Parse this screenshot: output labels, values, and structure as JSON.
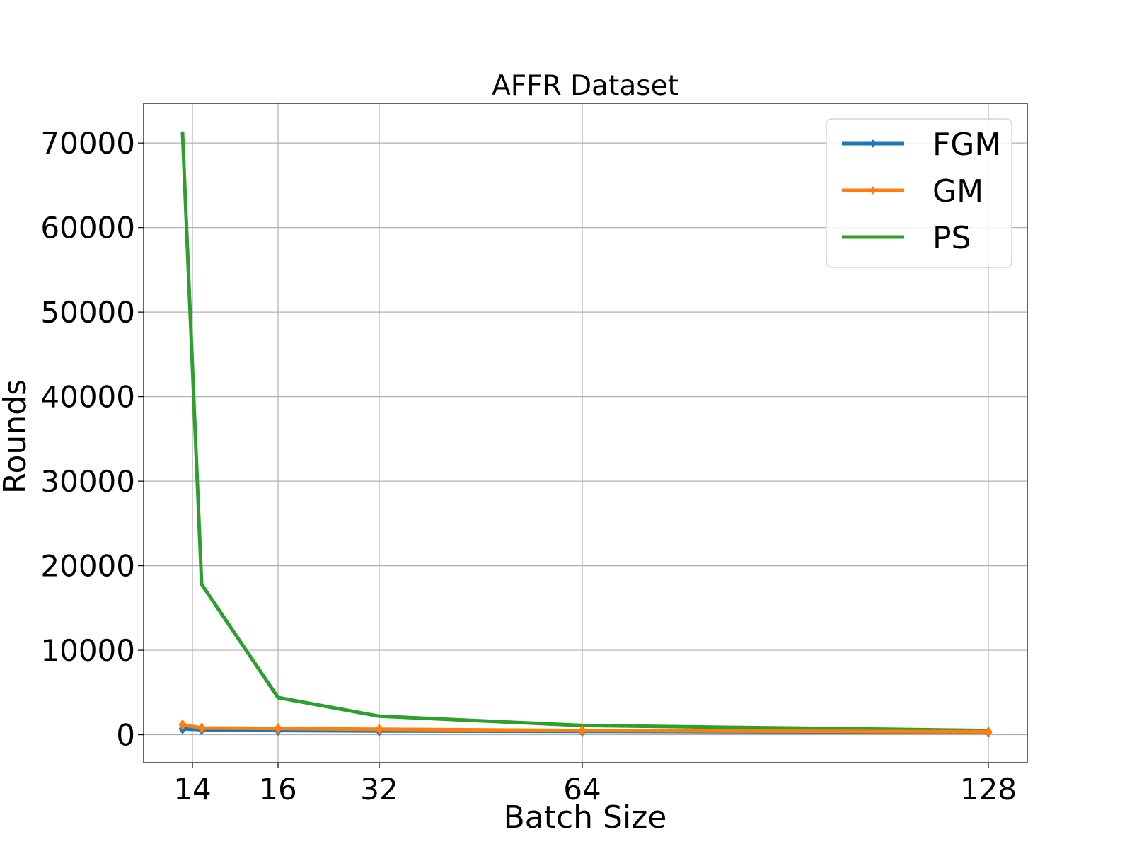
{
  "chart_data": {
    "type": "line",
    "title": "AFFR Dataset",
    "xlabel": "Batch Size",
    "ylabel": "Rounds",
    "x": [
      12,
      14,
      16,
      32,
      64,
      128
    ],
    "xticks": [
      14,
      16,
      32,
      64,
      128
    ],
    "xtick_labels": [
      "14",
      "16",
      "32",
      "64",
      "128"
    ],
    "yticks": [
      0,
      10000,
      20000,
      30000,
      40000,
      50000,
      60000,
      70000
    ],
    "ytick_labels": [
      "0",
      "10000",
      "20000",
      "30000",
      "40000",
      "50000",
      "60000",
      "70000"
    ],
    "ylim": [
      -3300,
      74700
    ],
    "grid": true,
    "legend_position": "top-right",
    "series": [
      {
        "name": "FGM",
        "color": "#1f77b4",
        "marker": "diamond",
        "values": [
          700,
          600,
          500,
          450,
          400,
          300
        ]
      },
      {
        "name": "GM",
        "color": "#ff7f0e",
        "marker": "diamond",
        "values": [
          1200,
          800,
          750,
          650,
          500,
          350
        ]
      },
      {
        "name": "PS",
        "color": "#2ca02c",
        "marker": "none",
        "values": [
          71200,
          17800,
          4400,
          2200,
          1100,
          500
        ]
      }
    ]
  }
}
